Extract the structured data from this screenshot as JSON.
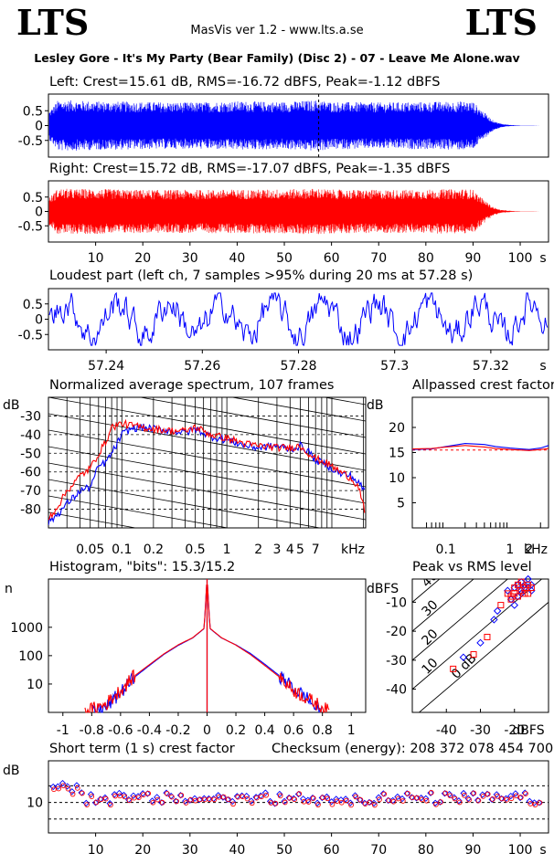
{
  "header": {
    "logo_left": "LTS",
    "logo_right": "LTS",
    "version": "MasVis ver 1.2 - www.lts.a.se",
    "file_title": "Lesley Gore - It's My Party (Bear Family) (Disc 2) - 07 - Leave Me Alone.wav"
  },
  "colors": {
    "left": "#0000ff",
    "right": "#ff0000"
  },
  "chart_data": [
    {
      "id": "left-waveform",
      "type": "area",
      "title": "Left: Crest=15.61 dB, RMS=-16.72 dBFS, Peak=-1.12 dBFS",
      "series": [
        {
          "color": "#0000ff"
        }
      ],
      "y_ticks": [
        "0.5",
        "0",
        "-0.5"
      ],
      "ylim": [
        -1,
        1
      ],
      "xlim": [
        0,
        106
      ],
      "marker_at_s": 57.28,
      "envelope": {
        "x": [
          0,
          2,
          5,
          10,
          20,
          30,
          40,
          50,
          57,
          60,
          70,
          80,
          88,
          90,
          92,
          94,
          95,
          96,
          98,
          100,
          106
        ],
        "amp": [
          0.45,
          0.85,
          0.85,
          0.82,
          0.8,
          0.78,
          0.82,
          0.8,
          0.86,
          0.8,
          0.78,
          0.8,
          0.82,
          0.8,
          0.5,
          0.2,
          0.12,
          0.06,
          0.02,
          0.005,
          0
        ]
      }
    },
    {
      "id": "right-waveform",
      "type": "area",
      "title": "Right: Crest=15.72 dB, RMS=-17.07 dBFS, Peak=-1.35 dBFS",
      "series": [
        {
          "color": "#ff0000"
        }
      ],
      "y_ticks": [
        "0.5",
        "0",
        "-0.5"
      ],
      "ylim": [
        -1,
        1
      ],
      "xlim": [
        0,
        106
      ],
      "x_ticks": [
        "10",
        "20",
        "30",
        "40",
        "50",
        "60",
        "70",
        "80",
        "90",
        "100"
      ],
      "x_unit": "s",
      "envelope": {
        "x": [
          0,
          2,
          5,
          10,
          20,
          30,
          40,
          50,
          57,
          60,
          70,
          80,
          88,
          90,
          92,
          94,
          95,
          96,
          98,
          100,
          106
        ],
        "amp": [
          0.45,
          0.8,
          0.78,
          0.78,
          0.75,
          0.75,
          0.76,
          0.77,
          0.8,
          0.76,
          0.75,
          0.76,
          0.78,
          0.76,
          0.45,
          0.18,
          0.1,
          0.05,
          0.02,
          0.005,
          0
        ]
      }
    },
    {
      "id": "loudest-part",
      "type": "line",
      "title": "Loudest part (left  ch, 7 samples >95% during 20 ms at 57.28 s)",
      "series": [
        {
          "color": "#0000ff"
        }
      ],
      "y_ticks": [
        "0.5",
        "0",
        "-0.5"
      ],
      "ylim": [
        -1,
        1
      ],
      "xlim": [
        57.228,
        57.332
      ],
      "x_ticks": [
        "57.24",
        "57.26",
        "57.28",
        "57.3",
        "57.32"
      ],
      "x_unit": "s"
    },
    {
      "id": "spectrum",
      "type": "line",
      "title": "Normalized average spectrum, 107 frames",
      "ylabel": "dB",
      "y_ticks": [
        "-30",
        "-40",
        "-50",
        "-60",
        "-70",
        "-80"
      ],
      "ylim": [
        -90,
        -20
      ],
      "x_scale": "log",
      "xlim_khz": [
        0.02,
        21
      ],
      "x_ticks": [
        "0.05",
        "0.1",
        "0.2",
        "0.5",
        "1",
        "2",
        "3",
        "4",
        "5",
        "7"
      ],
      "x_unit": "kHz",
      "series": [
        {
          "color": "#0000ff",
          "freq_khz": [
            0.02,
            0.03,
            0.04,
            0.05,
            0.06,
            0.07,
            0.08,
            0.1,
            0.12,
            0.15,
            0.2,
            0.3,
            0.4,
            0.5,
            0.7,
            1,
            1.5,
            2,
            3,
            4,
            5,
            6,
            7,
            8,
            10,
            12,
            15,
            18,
            21
          ],
          "db": [
            -87,
            -77,
            -70,
            -68,
            -57,
            -55,
            -50,
            -40,
            -37,
            -36,
            -37,
            -38,
            -39,
            -37,
            -41,
            -43,
            -46,
            -47,
            -46,
            -48,
            -46,
            -49,
            -54,
            -55,
            -58,
            -61,
            -62,
            -66,
            -71
          ]
        },
        {
          "color": "#ff0000",
          "freq_khz": [
            0.02,
            0.03,
            0.04,
            0.05,
            0.06,
            0.07,
            0.08,
            0.1,
            0.12,
            0.15,
            0.2,
            0.3,
            0.4,
            0.5,
            0.7,
            1,
            1.5,
            2,
            3,
            4,
            5,
            6,
            7,
            8,
            10,
            12,
            15,
            18,
            21
          ],
          "db": [
            -85,
            -70,
            -62,
            -58,
            -50,
            -44,
            -36,
            -34,
            -35,
            -36,
            -37,
            -38,
            -38,
            -36,
            -40,
            -42,
            -45,
            -46,
            -47,
            -47,
            -46,
            -50,
            -53,
            -54,
            -57,
            -60,
            -63,
            -68,
            -84
          ]
        }
      ]
    },
    {
      "id": "allpass-crest",
      "type": "line",
      "title": "Allpassed crest factor",
      "ylabel": "dB",
      "y_ticks": [
        "20",
        "15",
        "10",
        "5"
      ],
      "ylim": [
        0,
        26
      ],
      "x_scale": "log",
      "xlim_khz": [
        0.03,
        4
      ],
      "x_ticks": [
        "0.1",
        "1",
        "2"
      ],
      "x_unit": "kHz",
      "reference_db": 15.5,
      "series": [
        {
          "color": "#0000ff",
          "freq_khz": [
            0.03,
            0.06,
            0.1,
            0.2,
            0.4,
            0.6,
            1,
            1.5,
            2,
            3,
            4
          ],
          "db": [
            15.6,
            15.7,
            16.2,
            16.8,
            16.6,
            16.2,
            15.9,
            15.7,
            15.6,
            15.9,
            16.4
          ]
        },
        {
          "color": "#ff0000",
          "freq_khz": [
            0.03,
            0.06,
            0.1,
            0.2,
            0.4,
            0.6,
            1,
            1.5,
            2,
            3,
            4
          ],
          "db": [
            15.7,
            15.8,
            16.1,
            16.4,
            16.1,
            15.8,
            15.6,
            15.5,
            15.4,
            15.6,
            15.8
          ]
        }
      ]
    },
    {
      "id": "histogram",
      "type": "line",
      "title": "Histogram, \"bits\": 15.3/15.2",
      "ylabel": "n",
      "y_scale": "log",
      "y_ticks": [
        "1000",
        "100",
        "10"
      ],
      "xlim": [
        -1.1,
        1.1
      ],
      "x_ticks": [
        "-1",
        "-0.8",
        "-0.6",
        "-0.4",
        "-0.2",
        "0",
        "0.2",
        "0.4",
        "0.6",
        "0.8",
        "1"
      ],
      "series": [
        {
          "color": "#0000ff",
          "x": [
            -0.8,
            -0.7,
            -0.6,
            -0.5,
            -0.4,
            -0.3,
            -0.2,
            -0.1,
            -0.02,
            0,
            0.02,
            0.1,
            0.2,
            0.3,
            0.4,
            0.5,
            0.6,
            0.7,
            0.75,
            0.8
          ],
          "n": [
            1,
            1.5,
            5,
            18,
            45,
            110,
            230,
            420,
            900,
            60000,
            900,
            420,
            240,
            120,
            50,
            20,
            7,
            3,
            1.5,
            1
          ]
        },
        {
          "color": "#ff0000",
          "x": [
            -0.85,
            -0.7,
            -0.6,
            -0.5,
            -0.4,
            -0.3,
            -0.2,
            -0.1,
            -0.02,
            0,
            0.02,
            0.1,
            0.2,
            0.3,
            0.4,
            0.5,
            0.6,
            0.7,
            0.8,
            0.85
          ],
          "n": [
            1,
            2,
            6,
            20,
            48,
            115,
            240,
            430,
            920,
            60000,
            920,
            430,
            235,
            110,
            45,
            18,
            6,
            3,
            1.5,
            1
          ]
        }
      ]
    },
    {
      "id": "peak-vs-rms",
      "type": "scatter",
      "title": "Peak vs RMS level",
      "ylabel": "dBFS",
      "xlabel": "dBFS",
      "y_ticks": [
        "-10",
        "-20",
        "-30",
        "-40"
      ],
      "x_ticks": [
        "-40",
        "-30",
        "-20"
      ],
      "xlim": [
        -50,
        -10
      ],
      "ylim": [
        -48,
        -2
      ],
      "crest_line_labels": [
        "40",
        "30",
        "20",
        "10",
        "0 dB"
      ],
      "series": [
        {
          "color": "#0000ff",
          "rms": [
            -35,
            -30,
            -26,
            -25,
            -22,
            -21,
            -20,
            -19,
            -19,
            -18,
            -18,
            -17,
            -17,
            -16,
            -15,
            -15,
            -18,
            -20
          ],
          "peak": [
            -29,
            -24,
            -16,
            -13,
            -6,
            -9,
            -5,
            -4,
            -8,
            -3,
            -6,
            -5,
            -4,
            -2,
            -4,
            -6,
            -7,
            -11
          ]
        },
        {
          "color": "#ff0000",
          "rms": [
            -38,
            -32,
            -28,
            -24,
            -22,
            -21,
            -20,
            -20,
            -19,
            -18,
            -18,
            -17,
            -17,
            -16,
            -15,
            -16,
            -19,
            -21
          ],
          "peak": [
            -33,
            -28,
            -22,
            -11,
            -7,
            -8,
            -5,
            -7,
            -4,
            -6,
            -3,
            -7,
            -5,
            -4,
            -5,
            -7,
            -8,
            -9
          ]
        }
      ]
    },
    {
      "id": "short-term-crest",
      "type": "scatter",
      "title": "Short term (1 s) crest factor",
      "ylabel": "dB",
      "y_ticks": [
        "10"
      ],
      "ylim": [
        0,
        26
      ],
      "xlim": [
        0,
        106
      ],
      "x_ticks": [
        "10",
        "20",
        "30",
        "40",
        "50",
        "60",
        "70",
        "80",
        "90",
        "100"
      ],
      "x_unit": "s",
      "dashed_lines_db": [
        5,
        11,
        17
      ],
      "checksum": "Checksum (energy):   208 372 078 454 700"
    }
  ]
}
